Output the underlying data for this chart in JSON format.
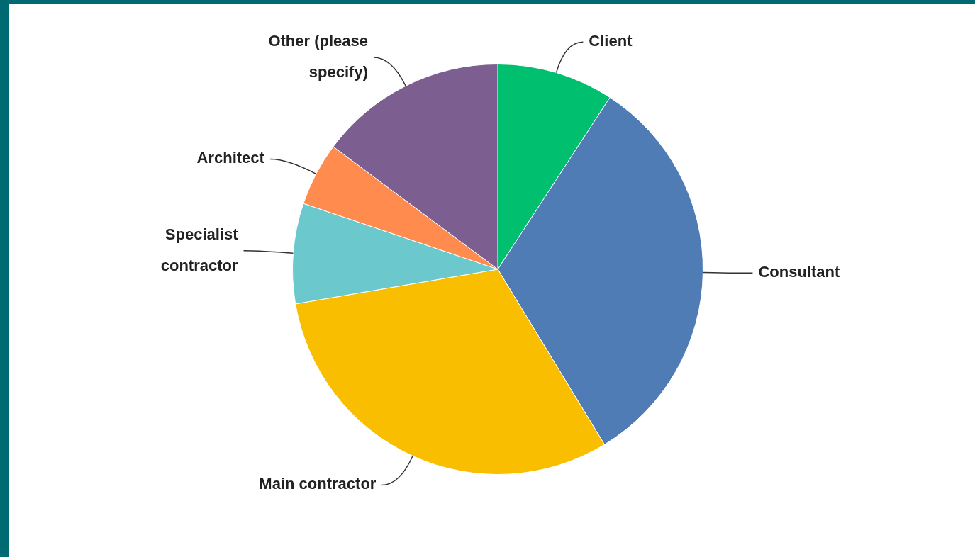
{
  "chart_data": {
    "type": "pie",
    "categories": [
      "Client",
      "Consultant",
      "Main contractor",
      "Specialist contractor",
      "Architect",
      "Other (please specify)"
    ],
    "values": [
      9.2,
      32.1,
      31.0,
      7.9,
      5.0,
      14.8
    ],
    "colors": [
      "#00bf6f",
      "#507cb6",
      "#f9be00",
      "#6bc8cd",
      "#ff8b4f",
      "#7d5e90"
    ],
    "legend": false
  }
}
